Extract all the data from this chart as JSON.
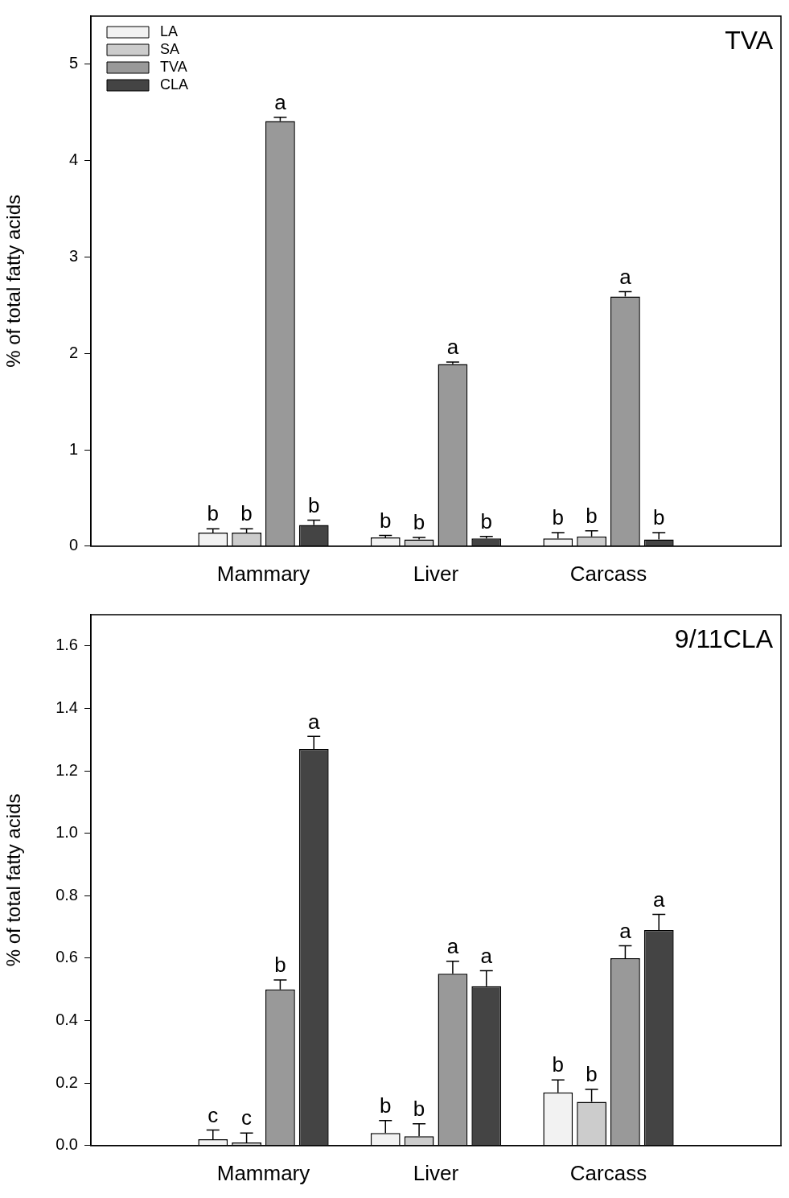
{
  "chart_data": [
    {
      "type": "bar",
      "title": "TVA",
      "ylabel": "% of total fatty acids",
      "categories": [
        null,
        "Mammary",
        "Liver",
        "Carcass",
        null
      ],
      "ylim": [
        0,
        5.5
      ],
      "yticks": [
        0,
        1,
        2,
        3,
        4,
        5
      ],
      "grid": false,
      "legend": "top left",
      "series": [
        {
          "name": "LA",
          "color": "#f2f2f2",
          "values": [
            null,
            0.14,
            0.09,
            0.08,
            null
          ],
          "errors": [
            null,
            0.04,
            0.02,
            0.06,
            null
          ],
          "value_labels": [
            null,
            "b",
            "b",
            "b",
            null
          ]
        },
        {
          "name": "SA",
          "color": "#cccccc",
          "values": [
            null,
            0.14,
            0.07,
            0.1,
            null
          ],
          "errors": [
            null,
            0.04,
            0.02,
            0.06,
            null
          ],
          "value_labels": [
            null,
            "b",
            "b",
            "b",
            null
          ]
        },
        {
          "name": "TVA",
          "color": "#999999",
          "values": [
            null,
            4.41,
            1.89,
            2.59,
            null
          ],
          "errors": [
            null,
            0.04,
            0.02,
            0.05,
            null
          ],
          "value_labels": [
            null,
            "a",
            "a",
            "a",
            null
          ]
        },
        {
          "name": "CLA",
          "color": "#444444",
          "values": [
            null,
            0.22,
            0.08,
            0.07,
            null
          ],
          "errors": [
            null,
            0.05,
            0.02,
            0.07,
            null
          ],
          "value_labels": [
            null,
            "b",
            "b",
            "b",
            null
          ]
        }
      ]
    },
    {
      "type": "bar",
      "title": "9/11CLA",
      "ylabel": "% of total fatty acids",
      "categories": [
        null,
        "Mammary",
        "Liver",
        "Carcass",
        null
      ],
      "ylim": [
        0,
        1.7
      ],
      "yticks": [
        {
          "value": 0,
          "label": "0.0"
        },
        {
          "value": 0.2,
          "label": "0.2"
        },
        {
          "value": 0.4,
          "label": "0.4"
        },
        {
          "value": 0.6,
          "label": "0.6"
        },
        {
          "value": 0.8,
          "label": "0.8"
        },
        {
          "value": 1.0,
          "label": "1.0"
        },
        {
          "value": 1.2,
          "label": "1.2"
        },
        {
          "value": 1.4,
          "label": "1.4"
        },
        {
          "value": 1.6,
          "label": "1.6"
        }
      ],
      "grid": false,
      "series": [
        {
          "color": "#f2f2f2",
          "values": [
            null,
            0.02,
            0.04,
            0.17,
            null
          ],
          "errors": [
            null,
            0.03,
            0.04,
            0.04,
            null
          ],
          "value_labels": [
            null,
            "c",
            "b",
            "b",
            null
          ]
        },
        {
          "color": "#cccccc",
          "values": [
            null,
            0.01,
            0.03,
            0.14,
            null
          ],
          "errors": [
            null,
            0.03,
            0.04,
            0.04,
            null
          ],
          "value_labels": [
            null,
            "c",
            "b",
            "b",
            null
          ]
        },
        {
          "color": "#999999",
          "values": [
            null,
            0.5,
            0.55,
            0.6,
            null
          ],
          "errors": [
            null,
            0.03,
            0.04,
            0.04,
            null
          ],
          "value_labels": [
            null,
            "b",
            "a",
            "a",
            null
          ]
        },
        {
          "color": "#444444",
          "values": [
            null,
            1.27,
            0.51,
            0.69,
            null
          ],
          "errors": [
            null,
            0.04,
            0.05,
            0.05,
            null
          ],
          "value_labels": [
            null,
            "a",
            "a",
            "a",
            null
          ]
        }
      ]
    }
  ]
}
